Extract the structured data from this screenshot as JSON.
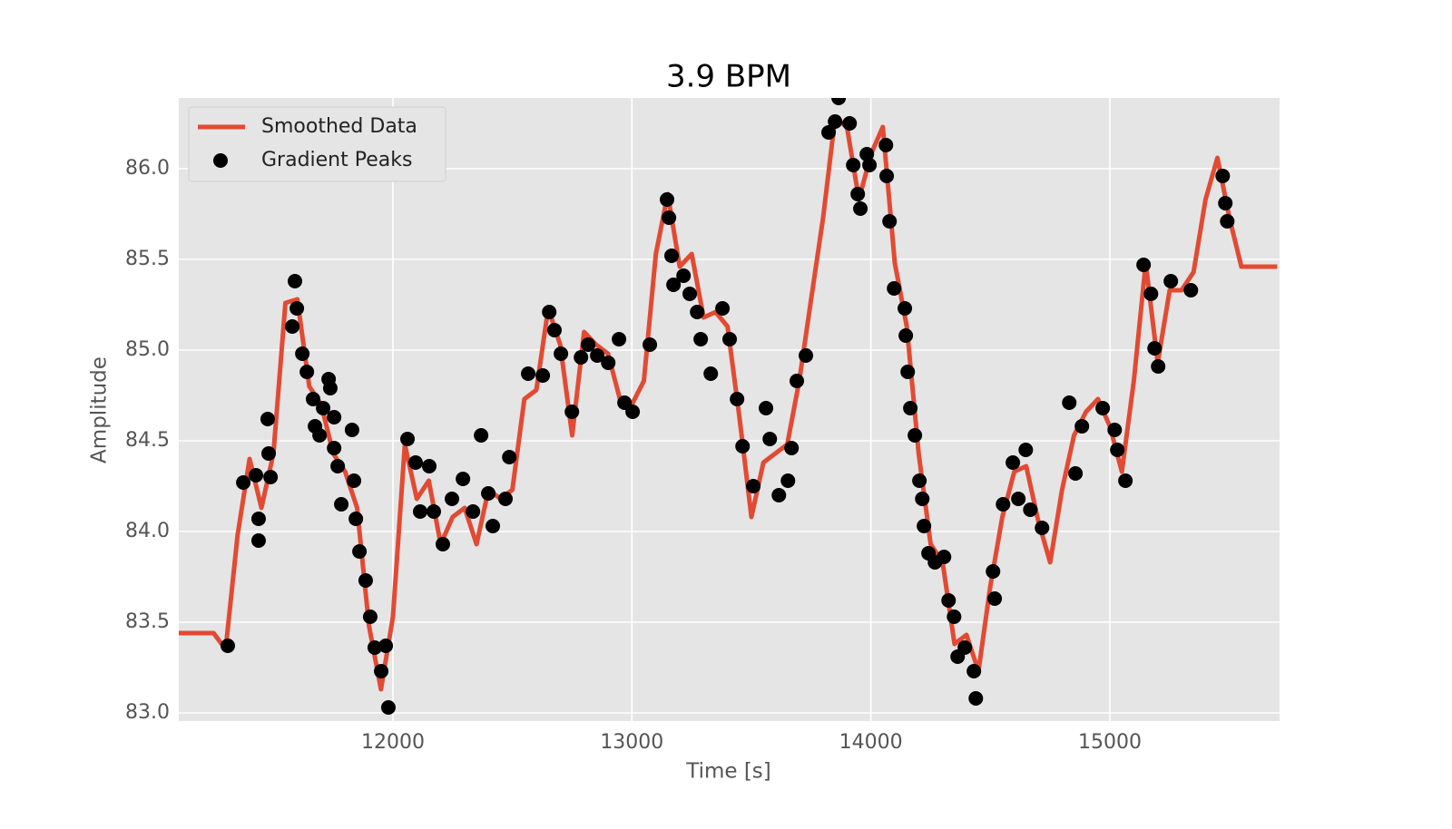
{
  "chart_data": {
    "type": "line",
    "title": "3.9 BPM",
    "x_label": "Time [s]",
    "y_label": "Amplitude",
    "xlim": [
      11104,
      15710
    ],
    "ylim": [
      82.955,
      86.39
    ],
    "xticks": [
      12000,
      13000,
      14000,
      15000
    ],
    "yticks": [
      {
        "value": 83,
        "label": "83.0"
      },
      {
        "value": 83.5,
        "label": "83.5"
      },
      {
        "value": 84,
        "label": "84.0"
      },
      {
        "value": 84.5,
        "label": "84.5"
      },
      {
        "value": 85,
        "label": "85.0"
      },
      {
        "value": 85.5,
        "label": "85.5"
      },
      {
        "value": 86,
        "label": "86.0"
      }
    ],
    "grid": true,
    "legend": "upper left",
    "series": [
      {
        "name": "Smoothed Data",
        "type": "line",
        "color": "#e24a33",
        "x": [
          11100,
          11150,
          11200,
          11250,
          11300,
          11350,
          11400,
          11450,
          11500,
          11550,
          11600,
          11650,
          11700,
          11750,
          11800,
          11850,
          11900,
          11950,
          12000,
          12050,
          12100,
          12150,
          12200,
          12250,
          12300,
          12350,
          12400,
          12450,
          12500,
          12550,
          12600,
          12650,
          12700,
          12750,
          12800,
          12850,
          12900,
          12950,
          13000,
          13050,
          13100,
          13150,
          13200,
          13250,
          13300,
          13350,
          13400,
          13450,
          13500,
          13550,
          13600,
          13650,
          13700,
          13750,
          13800,
          13850,
          13900,
          13950,
          14000,
          14050,
          14100,
          14150,
          14200,
          14250,
          14300,
          14350,
          14400,
          14450,
          14500,
          14550,
          14600,
          14650,
          14700,
          14750,
          14800,
          14850,
          14900,
          14950,
          15000,
          15050,
          15100,
          15150,
          15200,
          15250,
          15300,
          15350,
          15400,
          15450,
          15500,
          15550,
          15600,
          15650,
          15700
        ],
        "values": [
          83.44,
          83.44,
          83.44,
          83.44,
          83.35,
          83.98,
          84.4,
          84.13,
          84.43,
          85.26,
          85.28,
          84.8,
          84.7,
          84.43,
          84.33,
          84.13,
          83.48,
          83.13,
          83.53,
          84.48,
          84.18,
          84.28,
          83.93,
          84.08,
          84.13,
          83.93,
          84.23,
          84.18,
          84.23,
          84.73,
          84.78,
          85.23,
          85.03,
          84.53,
          85.1,
          85.03,
          84.98,
          84.73,
          84.7,
          84.83,
          85.53,
          85.86,
          85.46,
          85.53,
          85.18,
          85.21,
          85.13,
          84.63,
          84.08,
          84.38,
          84.43,
          84.48,
          84.83,
          85.28,
          85.73,
          86.28,
          86.23,
          85.83,
          86.08,
          86.23,
          85.48,
          85.13,
          84.43,
          83.93,
          83.83,
          83.38,
          83.43,
          83.23,
          83.7,
          84.08,
          84.33,
          84.36,
          84.06,
          83.83,
          84.23,
          84.53,
          84.66,
          84.73,
          84.58,
          84.33,
          84.83,
          85.48,
          84.93,
          85.33,
          85.33,
          85.43,
          85.83,
          86.06,
          85.73,
          85.46,
          85.46,
          85.46,
          85.46
        ]
      },
      {
        "name": "Gradient Peaks",
        "type": "scatter",
        "color": "#000000",
        "x": [
          11309,
          11374,
          11427,
          11438,
          11438,
          11476,
          11480,
          11488,
          11590,
          11598,
          11579,
          11621,
          11640,
          11666,
          11674,
          11693,
          11708,
          11731,
          11738,
          11754,
          11754,
          11769,
          11784,
          11829,
          11837,
          11845,
          11860,
          11886,
          11905,
          11924,
          11951,
          11970,
          11981,
          12061,
          12095,
          12114,
          12152,
          12171,
          12209,
          12247,
          12293,
          12335,
          12369,
          12399,
          12418,
          12471,
          12487,
          12566,
          12627,
          12654,
          12676,
          12703,
          12749,
          12787,
          12817,
          12855,
          12901,
          12946,
          12969,
          13003,
          13075,
          13147,
          13155,
          13166,
          13174,
          13216,
          13242,
          13273,
          13288,
          13330,
          13379,
          13409,
          13440,
          13463,
          13508,
          13561,
          13577,
          13615,
          13653,
          13668,
          13690,
          13728,
          13823,
          13850,
          13865,
          13911,
          13926,
          13945,
          13956,
          13983,
          13994,
          14063,
          14066,
          14078,
          14097,
          14142,
          14146,
          14154,
          14165,
          14184,
          14203,
          14215,
          14222,
          14241,
          14268,
          14306,
          14325,
          14348,
          14363,
          14393,
          14431,
          14439,
          14511,
          14518,
          14553,
          14594,
          14617,
          14648,
          14667,
          14716,
          14830,
          14856,
          14883,
          14970,
          15020,
          15031,
          15065,
          15141,
          15172,
          15187,
          15202,
          15255,
          15339,
          15472,
          15483,
          15491
        ],
        "values": [
          83.37,
          84.27,
          84.31,
          84.07,
          83.95,
          84.62,
          84.43,
          84.3,
          85.38,
          85.23,
          85.13,
          84.98,
          84.88,
          84.73,
          84.58,
          84.53,
          84.68,
          84.84,
          84.79,
          84.63,
          84.46,
          84.36,
          84.15,
          84.56,
          84.28,
          84.07,
          83.89,
          83.73,
          83.53,
          83.36,
          83.23,
          83.37,
          83.03,
          84.51,
          84.38,
          84.11,
          84.36,
          84.11,
          83.93,
          84.18,
          84.29,
          84.11,
          84.53,
          84.21,
          84.03,
          84.18,
          84.41,
          84.87,
          84.86,
          85.21,
          85.11,
          84.98,
          84.66,
          84.96,
          85.03,
          84.97,
          84.93,
          85.06,
          84.71,
          84.66,
          85.03,
          85.83,
          85.73,
          85.52,
          85.36,
          85.41,
          85.31,
          85.21,
          85.06,
          84.87,
          85.23,
          85.06,
          84.73,
          84.47,
          84.25,
          84.68,
          84.51,
          84.2,
          84.28,
          84.46,
          84.83,
          84.97,
          86.2,
          86.26,
          86.39,
          86.25,
          86.02,
          85.86,
          85.78,
          86.08,
          86.02,
          86.13,
          85.96,
          85.71,
          85.34,
          85.23,
          85.08,
          84.88,
          84.68,
          84.53,
          84.28,
          84.18,
          84.03,
          83.88,
          83.83,
          83.86,
          83.62,
          83.53,
          83.31,
          83.36,
          83.23,
          83.08,
          83.78,
          83.63,
          84.15,
          84.38,
          84.18,
          84.45,
          84.12,
          84.02,
          84.71,
          84.32,
          84.58,
          84.68,
          84.56,
          84.45,
          84.28,
          85.47,
          85.31,
          85.01,
          84.91,
          85.38,
          85.33,
          85.96,
          85.81,
          85.71
        ]
      }
    ]
  }
}
